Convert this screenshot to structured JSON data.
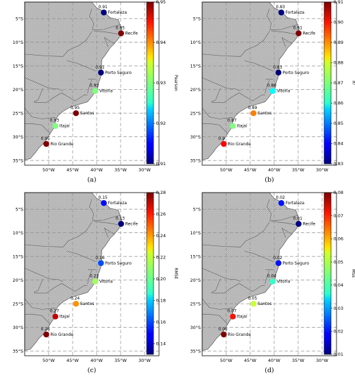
{
  "lon_ticks": [
    "50°W",
    "45°W",
    "40°W",
    "35°W",
    "30°W"
  ],
  "lat_ticks": [
    "5°S",
    "10°S",
    "15°S",
    "20°S",
    "25°S",
    "30°S",
    "35°S"
  ],
  "stations": [
    {
      "name": "Fortaleza",
      "lon": -38.5,
      "lat": -3.7
    },
    {
      "name": "Recife",
      "lon": -34.9,
      "lat": -8.1
    },
    {
      "name": "Porto Seguro",
      "lon": -39.1,
      "lat": -16.4
    },
    {
      "name": "Vitória",
      "lon": -40.3,
      "lat": -20.3
    },
    {
      "name": "Santos",
      "lon": -44.3,
      "lat": -25.0
    },
    {
      "name": "Itajaí",
      "lon": -48.6,
      "lat": -27.7
    },
    {
      "name": "Rio Grande",
      "lon": -50.5,
      "lat": -31.5
    }
  ],
  "panels": [
    {
      "caption": "(a)",
      "colorbar_label": "Pearson",
      "range": [
        0.91,
        0.95
      ],
      "cb_ticks": [
        "0.95",
        "0.94",
        "0.93",
        "0.92",
        "0.91"
      ],
      "values": [
        0.91,
        0.95,
        0.91,
        0.93,
        0.95,
        0.93,
        0.95
      ],
      "labels": [
        "0.91",
        "0.95",
        "0.91",
        "0.93",
        "0.95",
        "0.93",
        "0.95"
      ]
    },
    {
      "caption": "(b)",
      "colorbar_label": "R²",
      "range": [
        0.83,
        0.91
      ],
      "cb_ticks": [
        "0.91",
        "0.90",
        "0.89",
        "0.88",
        "0.87",
        "0.86",
        "0.85",
        "0.84",
        "0.83"
      ],
      "values": [
        0.83,
        0.91,
        0.83,
        0.86,
        0.89,
        0.87,
        0.9
      ],
      "labels": [
        "0.83",
        "0.91",
        "0.83",
        "0.86",
        "0.89",
        "0.87",
        "0.9"
      ]
    },
    {
      "caption": "(c)",
      "colorbar_label": "RMSE",
      "range": [
        0.13,
        0.28
      ],
      "cb_ticks": [
        "0.28",
        "0.26",
        "0.24",
        "0.22",
        "0.20",
        "0.18",
        "0.16",
        "0.14"
      ],
      "values": [
        0.15,
        0.13,
        0.16,
        0.21,
        0.24,
        0.27,
        0.28
      ],
      "labels": [
        "0.15",
        "0.13",
        "0.16",
        "0.21",
        "0.24",
        "0.27",
        "0.28"
      ]
    },
    {
      "caption": "(d)",
      "colorbar_label": "MSE",
      "range": [
        0.01,
        0.08
      ],
      "cb_ticks": [
        "0.08",
        "0.07",
        "0.06",
        "0.05",
        "0.04",
        "0.03",
        "0.02",
        "0.01"
      ],
      "values": [
        0.02,
        0.01,
        0.02,
        0.04,
        0.05,
        0.07,
        0.08
      ],
      "labels": [
        "0.02",
        "0.01",
        "0.02",
        "0.04",
        "0.05",
        "0.07",
        "0.08"
      ]
    }
  ]
}
